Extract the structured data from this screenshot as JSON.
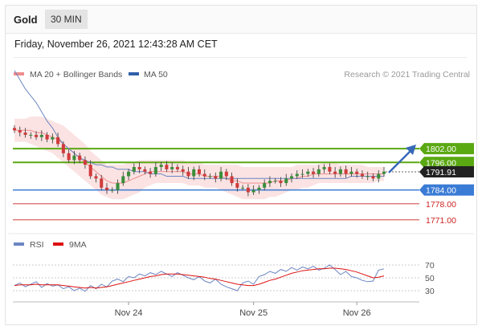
{
  "header": {
    "instrument": "Gold",
    "timeframe": "30 MIN"
  },
  "datetime": "Friday, November 26, 2021 12:43:28 AM CET",
  "legend": {
    "ma20": "MA 20 + Bollinger Bands",
    "ma50": "MA 50",
    "credit": "Research © 2021 Trading Central",
    "rsi": "RSI",
    "ma9": "9MA"
  },
  "colors": {
    "up": "#3a8e3a",
    "down": "#d13b3b",
    "resistance": "#5aa812",
    "pivot": "#3a7bd5",
    "support": "#cc2222",
    "ma50": "#6b86c2",
    "bollinger_fill": "#fbe3e3",
    "ma20": "#f08c8c",
    "price_tag": "#222222",
    "arrow": "#3868b8"
  },
  "chart_data": [
    {
      "type": "candlestick",
      "ylim": [
        1765,
        1830
      ],
      "x_ticks": [
        {
          "index": 21,
          "label": "Nov 24"
        },
        {
          "index": 44,
          "label": "Nov 25"
        },
        {
          "index": 63,
          "label": "Nov 26"
        }
      ],
      "levels": [
        {
          "value": 1802.0,
          "label": "1802.00",
          "kind": "resistance",
          "tag": "box"
        },
        {
          "value": 1796.0,
          "label": "1796.00",
          "kind": "resistance",
          "tag": "box"
        },
        {
          "value": 1791.91,
          "label": "1791.91",
          "kind": "last",
          "tag": "box"
        },
        {
          "value": 1784.0,
          "label": "1784.00",
          "kind": "pivot",
          "tag": "box"
        },
        {
          "value": 1778.0,
          "label": "1778.00",
          "kind": "support",
          "tag": "text"
        },
        {
          "value": 1771.0,
          "label": "1771.00",
          "kind": "support",
          "tag": "text"
        }
      ],
      "close": [
        1810,
        1809,
        1808,
        1808,
        1807,
        1808,
        1806,
        1807,
        1804,
        1800,
        1797,
        1799,
        1797,
        1795,
        1790,
        1789,
        1785,
        1784,
        1784,
        1787,
        1790,
        1792,
        1794,
        1793,
        1792,
        1791,
        1794,
        1795,
        1793,
        1794,
        1793,
        1792,
        1790,
        1793,
        1791,
        1790,
        1790,
        1789,
        1792,
        1790,
        1787,
        1785,
        1785,
        1783,
        1784,
        1785,
        1787,
        1788,
        1788,
        1787,
        1789,
        1790,
        1791,
        1791,
        1792,
        1791,
        1793,
        1794,
        1792,
        1791,
        1793,
        1791,
        1792,
        1791,
        1790,
        1790,
        1789,
        1791,
        1792
      ],
      "ma50": [
        1836,
        1832,
        1828,
        1825,
        1822,
        1818,
        1814,
        1811,
        1807,
        1804,
        1802,
        1800,
        1798,
        1797,
        1796,
        1795,
        1795,
        1794,
        1794,
        1793,
        1793,
        1793,
        1792,
        1792,
        1792,
        1791,
        1791,
        1791,
        1790,
        1790,
        1790,
        1790,
        1789,
        1789,
        1789,
        1789,
        1789,
        1789,
        1789,
        1789,
        1789,
        1789,
        1789,
        1789,
        1789,
        1789,
        1789,
        1789,
        1789,
        1789,
        1789,
        1789,
        1789,
        1789,
        1789,
        1789,
        1789,
        1789,
        1789,
        1789,
        1789,
        1789,
        1790,
        1790,
        1790,
        1790,
        1790,
        1790,
        1790
      ],
      "ma20": [
        1810,
        1810,
        1810,
        1810,
        1809,
        1809,
        1808,
        1807,
        1806,
        1804,
        1802,
        1800,
        1798,
        1796,
        1794,
        1792,
        1790,
        1788,
        1787,
        1787,
        1787,
        1788,
        1789,
        1790,
        1791,
        1792,
        1792,
        1792,
        1792,
        1792,
        1792,
        1792,
        1791,
        1791,
        1791,
        1790,
        1790,
        1790,
        1790,
        1789,
        1788,
        1788,
        1787,
        1787,
        1787,
        1787,
        1787,
        1787,
        1788,
        1788,
        1788,
        1789,
        1789,
        1790,
        1790,
        1791,
        1791,
        1791,
        1791,
        1791,
        1791,
        1791,
        1791,
        1791,
        1791,
        1791,
        1791,
        1791,
        1791
      ],
      "bb_upper": [
        1815,
        1815,
        1815,
        1816,
        1816,
        1816,
        1815,
        1814,
        1813,
        1812,
        1810,
        1808,
        1806,
        1804,
        1801,
        1799,
        1797,
        1795,
        1795,
        1795,
        1795,
        1796,
        1796,
        1797,
        1797,
        1797,
        1797,
        1797,
        1797,
        1797,
        1797,
        1797,
        1796,
        1796,
        1796,
        1795,
        1795,
        1795,
        1795,
        1795,
        1795,
        1795,
        1794,
        1794,
        1794,
        1794,
        1794,
        1794,
        1794,
        1794,
        1794,
        1794,
        1795,
        1795,
        1795,
        1795,
        1795,
        1796,
        1796,
        1796,
        1795,
        1795,
        1795,
        1795,
        1795,
        1794,
        1794,
        1794,
        1794
      ],
      "bb_lower": [
        1805,
        1805,
        1805,
        1804,
        1803,
        1802,
        1801,
        1800,
        1798,
        1796,
        1794,
        1792,
        1790,
        1788,
        1786,
        1784,
        1782,
        1781,
        1780,
        1780,
        1780,
        1781,
        1782,
        1783,
        1785,
        1786,
        1787,
        1787,
        1787,
        1787,
        1787,
        1787,
        1786,
        1786,
        1786,
        1785,
        1785,
        1785,
        1784,
        1783,
        1782,
        1781,
        1780,
        1780,
        1780,
        1780,
        1780,
        1781,
        1781,
        1782,
        1783,
        1784,
        1784,
        1785,
        1785,
        1786,
        1787,
        1787,
        1787,
        1787,
        1787,
        1787,
        1787,
        1787,
        1787,
        1787,
        1787,
        1788,
        1788
      ]
    },
    {
      "type": "line",
      "ylim": [
        15,
        85
      ],
      "y_ticks": [
        70,
        50,
        30
      ],
      "series": [
        {
          "name": "RSI",
          "values": [
            38,
            42,
            36,
            40,
            44,
            35,
            41,
            37,
            39,
            33,
            36,
            30,
            34,
            29,
            38,
            33,
            40,
            36,
            45,
            48,
            44,
            52,
            50,
            56,
            53,
            58,
            55,
            60,
            56,
            52,
            58,
            54,
            50,
            47,
            52,
            45,
            42,
            48,
            40,
            36,
            33,
            30,
            42,
            45,
            40,
            52,
            55,
            60,
            57,
            63,
            60,
            66,
            62,
            67,
            64,
            68,
            62,
            65,
            70,
            63,
            55,
            60,
            52,
            50,
            46,
            44,
            45,
            62,
            64
          ]
        },
        {
          "name": "9MA",
          "values": [
            38,
            39,
            39,
            39,
            40,
            39,
            39,
            39,
            39,
            38,
            37,
            36,
            35,
            34,
            35,
            34,
            35,
            36,
            38,
            40,
            42,
            44,
            46,
            48,
            50,
            52,
            53,
            55,
            56,
            56,
            56,
            55,
            54,
            53,
            52,
            51,
            49,
            48,
            46,
            44,
            42,
            40,
            39,
            38,
            38,
            40,
            43,
            46,
            48,
            51,
            54,
            57,
            59,
            61,
            62,
            63,
            64,
            64,
            65,
            65,
            64,
            63,
            61,
            59,
            56,
            53,
            50,
            51,
            53
          ]
        }
      ]
    }
  ]
}
